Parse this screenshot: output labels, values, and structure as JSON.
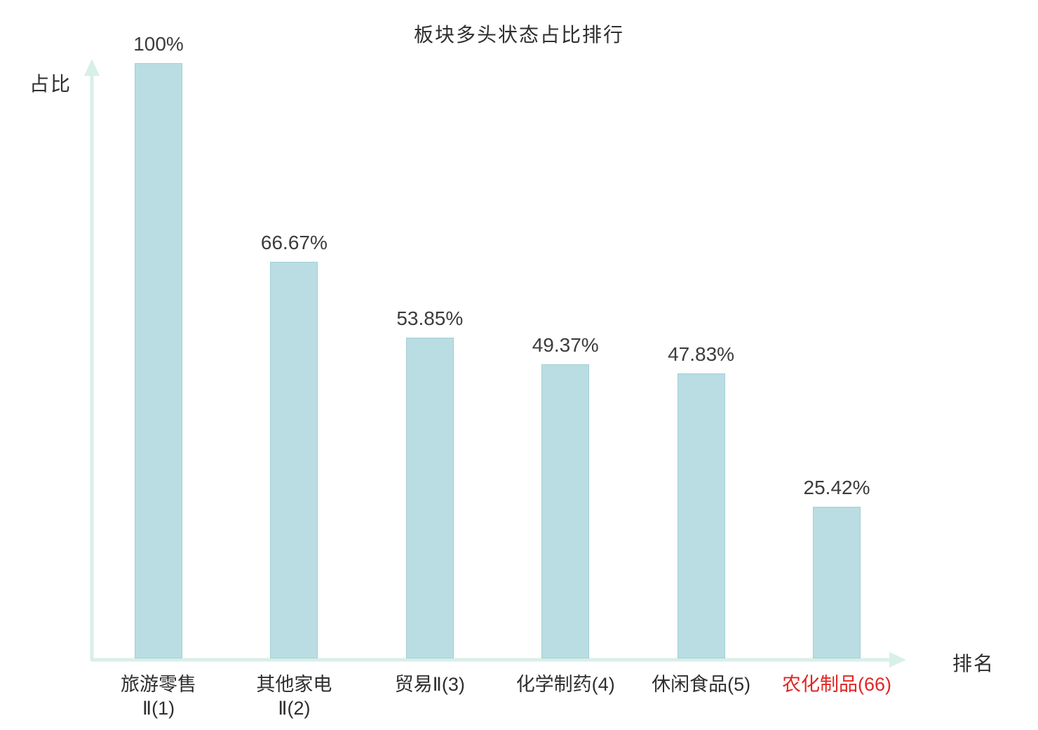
{
  "chart": {
    "title": "板块多头状态占比排行",
    "ylabel": "占比",
    "xlabel": "排名"
  },
  "chart_data": {
    "type": "bar",
    "title": "板块多头状态占比排行",
    "xlabel": "排名",
    "ylabel": "占比",
    "ylim": [
      0,
      100
    ],
    "grid": false,
    "legend": "none",
    "bar_color": "#b9dde2",
    "bar_border_color": "#a3ced6",
    "axis_color": "#d9efe9",
    "value_label_color": "#3c3c3c",
    "category_label_color": "#2f2f2f",
    "highlight_label_color": "#e02622",
    "categories": [
      "旅游零售Ⅱ(1)",
      "其他家电Ⅱ(2)",
      "贸易Ⅱ(3)",
      "化学制药(4)",
      "休闲食品(5)",
      "农化制品(66)"
    ],
    "values": [
      100,
      66.67,
      53.85,
      49.37,
      47.83,
      25.42
    ],
    "bars": [
      {
        "category_lines": [
          "旅游零售",
          "Ⅱ(1)"
        ],
        "value": 100,
        "value_label": "100%",
        "highlight": false
      },
      {
        "category_lines": [
          "其他家电",
          "Ⅱ(2)"
        ],
        "value": 66.67,
        "value_label": "66.67%",
        "highlight": false
      },
      {
        "category_lines": [
          "贸易Ⅱ(3)"
        ],
        "value": 53.85,
        "value_label": "53.85%",
        "highlight": false
      },
      {
        "category_lines": [
          "化学制药(4)"
        ],
        "value": 49.37,
        "value_label": "49.37%",
        "highlight": false
      },
      {
        "category_lines": [
          "休闲食品(5)"
        ],
        "value": 47.83,
        "value_label": "47.83%",
        "highlight": false
      },
      {
        "category_lines": [
          "农化制品(66)"
        ],
        "value": 25.42,
        "value_label": "25.42%",
        "highlight": true
      }
    ]
  }
}
